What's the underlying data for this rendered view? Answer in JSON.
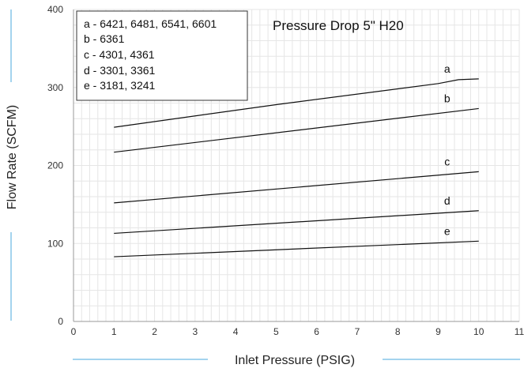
{
  "chart_data": {
    "type": "line",
    "title": "Pressure Drop 5\" H20",
    "xlabel": "Inlet Pressure (PSIG)",
    "ylabel": "Flow Rate (SCFM)",
    "xlim": [
      0,
      11
    ],
    "ylim": [
      0,
      400
    ],
    "xticks": [
      0,
      1,
      2,
      3,
      4,
      5,
      6,
      7,
      8,
      9,
      10,
      11
    ],
    "yticks": [
      0,
      100,
      200,
      300,
      400
    ],
    "grid": true,
    "legend_position": "top-left",
    "legend": [
      "a - 6421, 6481, 6541, 6601",
      "b - 6361",
      "c - 4301, 4361",
      "d - 3301, 3361",
      "e - 3181, 3241"
    ],
    "series": [
      {
        "name": "a",
        "x": [
          1,
          5,
          9,
          9.5,
          10
        ],
        "y": [
          249,
          278,
          305,
          310,
          311
        ]
      },
      {
        "name": "b",
        "x": [
          1,
          10
        ],
        "y": [
          217,
          273
        ]
      },
      {
        "name": "c",
        "x": [
          1,
          10
        ],
        "y": [
          152,
          192
        ]
      },
      {
        "name": "d",
        "x": [
          1,
          10
        ],
        "y": [
          113,
          142
        ]
      },
      {
        "name": "e",
        "x": [
          1,
          10
        ],
        "y": [
          83,
          103
        ]
      }
    ],
    "colors": {
      "grid": "#e6e6e6",
      "line": "#111111",
      "accent": "#4aa8dc"
    }
  }
}
